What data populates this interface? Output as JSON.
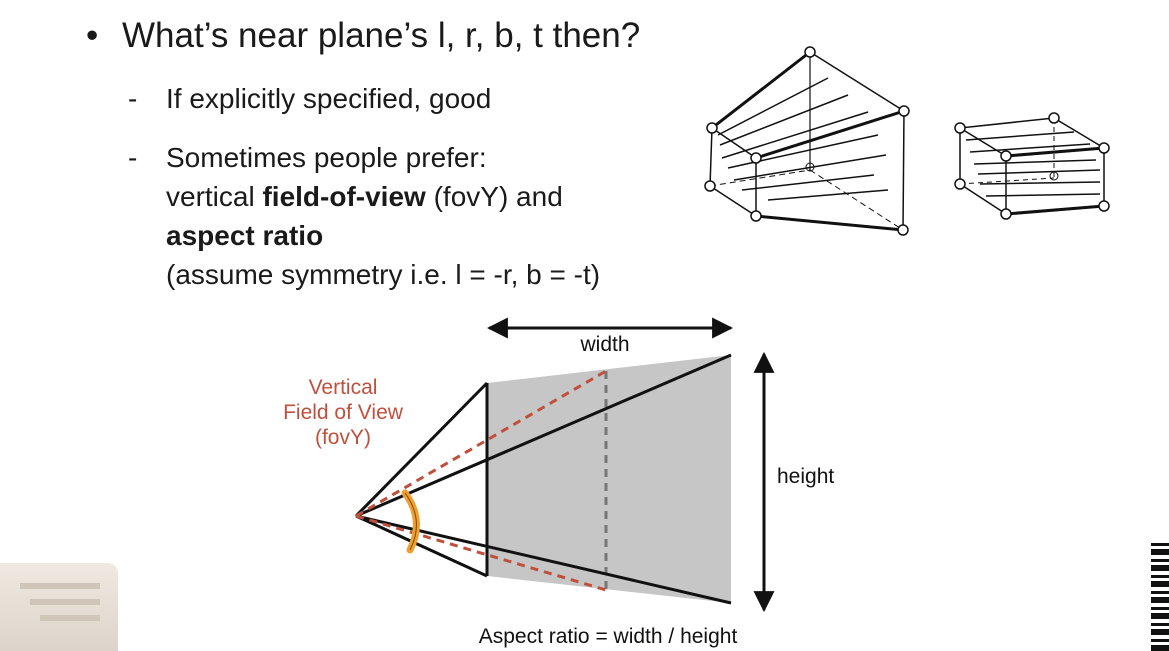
{
  "slide": {
    "main_bullet": "What’s near plane’s l, r, b, t then?",
    "sub1": "If explicitly specified, good",
    "sub2_line1": "Sometimes people prefer:",
    "sub2_line2_pre": "vertical ",
    "sub2_line2_bold": "field-of-view",
    "sub2_line2_post": " (fovY) and",
    "sub2_line3_bold": "aspect ratio",
    "sub2_line4": "(assume symmetry i.e. l = -r, b = -t)"
  },
  "diagram": {
    "fov_label_line1": "Vertical",
    "fov_label_line2": "Field of View",
    "fov_label_line3": "(fovY)",
    "width_label": "width",
    "height_label": "height",
    "caption": "Aspect ratio = width / height"
  },
  "colors": {
    "accent_red": "#c0503c",
    "plane_gray": "#c6c6c6",
    "arc_orange": "#f0a030"
  },
  "icons": [
    "perspective-frustum-icon",
    "orthographic-box-icon",
    "qr-code-icon"
  ]
}
